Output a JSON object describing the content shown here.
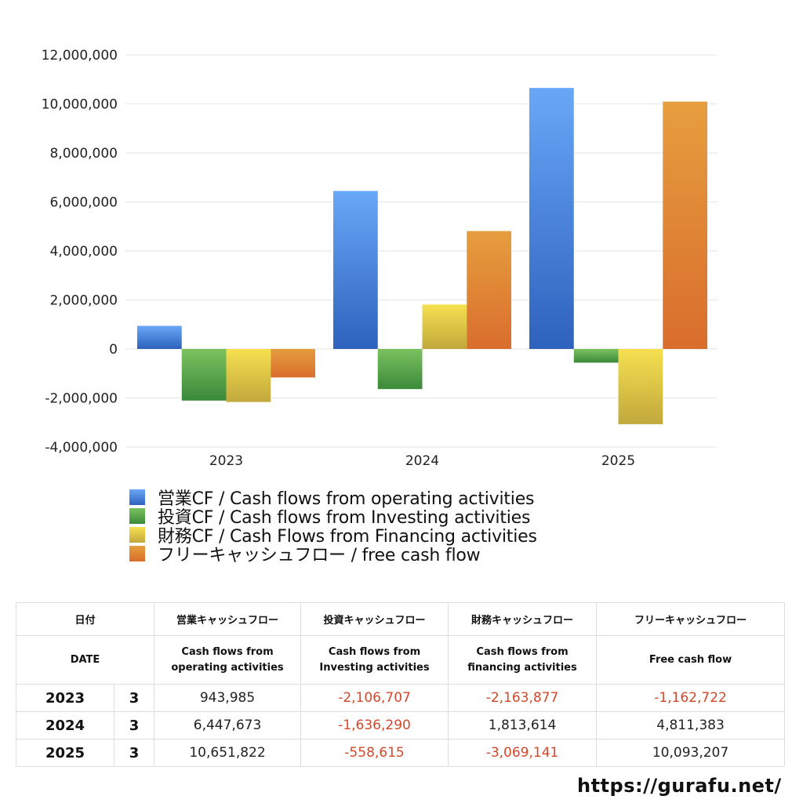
{
  "chart_data": {
    "type": "bar",
    "categories": [
      "2023",
      "2024",
      "2025"
    ],
    "series": [
      {
        "name": "営業CF / Cash flows from operating activities",
        "values": [
          943985,
          6447673,
          10651822
        ],
        "color": "#3f7fdc"
      },
      {
        "name": "投資CF / Cash flows from Investing activities",
        "values": [
          -2106707,
          -1636290,
          -558615
        ],
        "color": "#4fa447"
      },
      {
        "name": "財務CF / Cash Flows from Financing activities",
        "values": [
          -2163877,
          1813614,
          -3069141
        ],
        "color": "#e2c447"
      },
      {
        "name": "フリーキャッシュフロー / free cash flow",
        "values": [
          -1162722,
          4811383,
          10093207
        ],
        "color": "#e0843a"
      }
    ],
    "ylim": [
      -4000000,
      12000000
    ],
    "yticks": [
      12000000,
      10000000,
      8000000,
      6000000,
      4000000,
      2000000,
      0,
      -2000000,
      -4000000
    ],
    "ytick_labels": [
      "12,000,000",
      "10,000,000",
      "8,000,000",
      "6,000,000",
      "4,000,000",
      "2,000,000",
      "0",
      "-2,000,000",
      "-4,000,000"
    ],
    "grid": true,
    "legend_position": "bottom-left"
  },
  "table": {
    "headers_jp": [
      "日付",
      "営業キャッシュフロー",
      "投資キャッシュフロー",
      "財務キャッシュフロー",
      "フリーキャッシュフロー"
    ],
    "headers_en": [
      "DATE",
      "Cash flows from",
      "operating activities",
      "Cash flows from",
      "Investing activities",
      "Cash flows from",
      "financing activities",
      "Free cash flow"
    ],
    "rows": [
      {
        "year": "2023",
        "month": "3",
        "values": [
          "943,985",
          "-2,106,707",
          "-2,163,877",
          "-1,162,722"
        ]
      },
      {
        "year": "2024",
        "month": "3",
        "values": [
          "6,447,673",
          "-1,636,290",
          "1,813,614",
          "4,811,383"
        ]
      },
      {
        "year": "2025",
        "month": "3",
        "values": [
          "10,651,822",
          "-558,615",
          "-3,069,141",
          "10,093,207"
        ]
      }
    ],
    "negative_color": "#d2482a"
  },
  "site_url": "https://gurafu.net/"
}
